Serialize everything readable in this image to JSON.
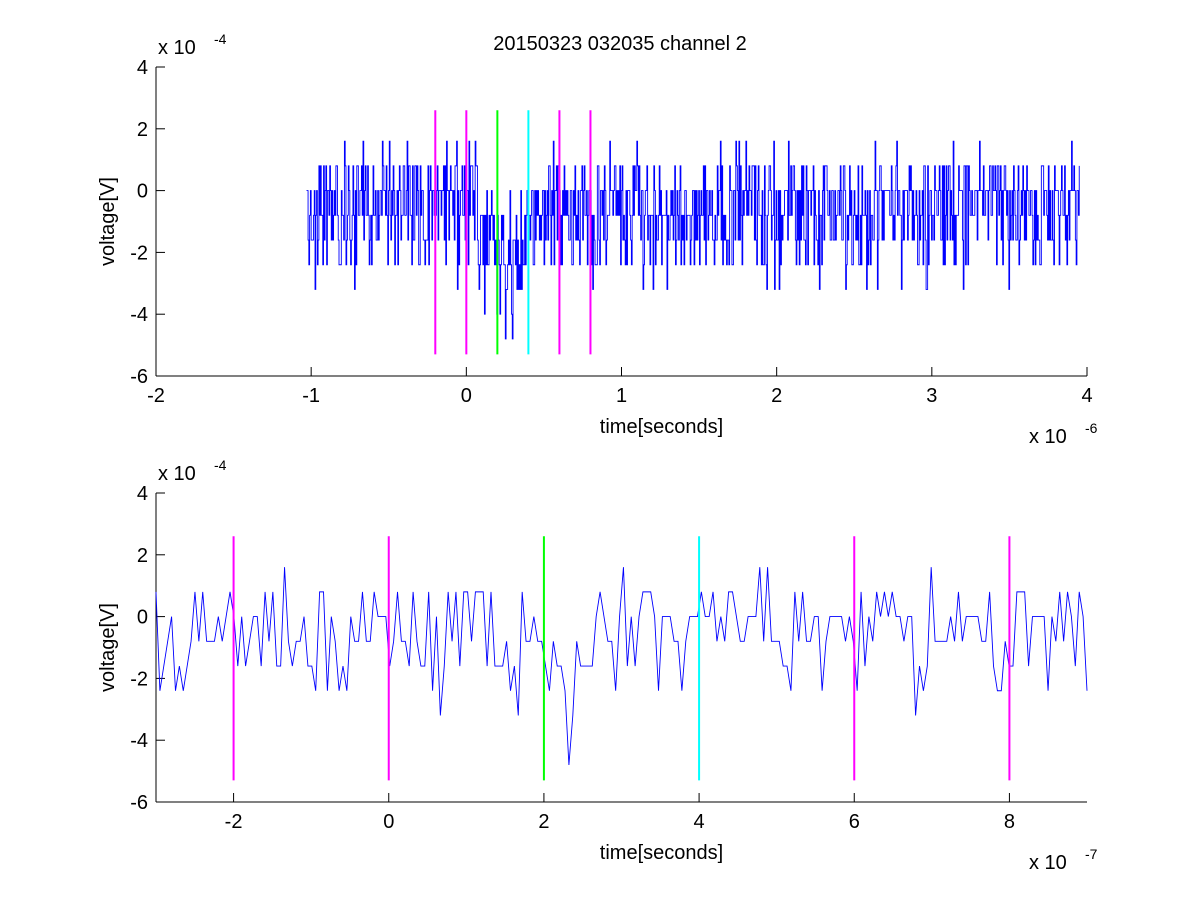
{
  "figure": {
    "title": "20150323 032035 channel 2"
  },
  "chart_data": [
    {
      "type": "line",
      "title": "20150323 032035 channel 2",
      "xlabel": "time[seconds]",
      "ylabel": "voltage[V]",
      "x_multiplier": "x 10",
      "x_exponent": "-6",
      "y_multiplier": "x 10",
      "y_exponent": "-4",
      "xlim": [
        -2,
        4
      ],
      "ylim": [
        -6,
        4
      ],
      "xticks": [
        -2,
        -1,
        0,
        1,
        2,
        3,
        4
      ],
      "yticks": [
        -6,
        -4,
        -2,
        0,
        2,
        4
      ],
      "grid": false,
      "series": [
        {
          "color": "#0000ff",
          "x_range": [
            -1.03,
            3.95
          ],
          "points": 1000,
          "levels": [
            -4.8,
            -4.0,
            -3.2,
            -2.4,
            -1.6,
            -0.8,
            0,
            0.8,
            1.6,
            2.4
          ],
          "baseline": -0.8,
          "dip_center": 0.25,
          "dip_min": -4.8
        }
      ],
      "markers": [
        {
          "x": -0.2,
          "color": "#ff00ff",
          "y_range": [
            -5.3,
            2.6
          ]
        },
        {
          "x": 0.0,
          "color": "#ff00ff",
          "y_range": [
            -5.3,
            2.6
          ]
        },
        {
          "x": 0.2,
          "color": "#00ff00",
          "y_range": [
            -5.3,
            2.6
          ]
        },
        {
          "x": 0.4,
          "color": "#00ffff",
          "y_range": [
            -5.3,
            2.6
          ]
        },
        {
          "x": 0.6,
          "color": "#ff00ff",
          "y_range": [
            -5.3,
            2.6
          ]
        },
        {
          "x": 0.8,
          "color": "#ff00ff",
          "y_range": [
            -5.3,
            2.6
          ]
        }
      ]
    },
    {
      "type": "line",
      "title": "",
      "xlabel": "time[seconds]",
      "ylabel": "voltage[V]",
      "x_multiplier": "x 10",
      "x_exponent": "-7",
      "y_multiplier": "x 10",
      "y_exponent": "-4",
      "xlim": [
        -3,
        9
      ],
      "ylim": [
        -6,
        4
      ],
      "xticks": [
        -2,
        0,
        2,
        4,
        6,
        8
      ],
      "yticks": [
        -6,
        -4,
        -2,
        0,
        2,
        4
      ],
      "grid": false,
      "series": [
        {
          "color": "#0000ff",
          "x_range": [
            -3,
            9
          ],
          "points": 240,
          "levels": [
            -4.8,
            -4.0,
            -3.2,
            -2.4,
            -1.6,
            -0.8,
            0,
            0.8,
            1.6
          ],
          "baseline": -0.8,
          "dip_center": 2.3,
          "dip_min": -4.8
        }
      ],
      "markers": [
        {
          "x": -2,
          "color": "#ff00ff",
          "y_range": [
            -5.3,
            2.6
          ]
        },
        {
          "x": 0,
          "color": "#ff00ff",
          "y_range": [
            -5.3,
            2.6
          ]
        },
        {
          "x": 2,
          "color": "#00ff00",
          "y_range": [
            -5.3,
            2.6
          ]
        },
        {
          "x": 4,
          "color": "#00ffff",
          "y_range": [
            -5.3,
            2.6
          ]
        },
        {
          "x": 6,
          "color": "#ff00ff",
          "y_range": [
            -5.3,
            2.6
          ]
        },
        {
          "x": 8,
          "color": "#ff00ff",
          "y_range": [
            -5.3,
            2.6
          ]
        }
      ]
    }
  ]
}
